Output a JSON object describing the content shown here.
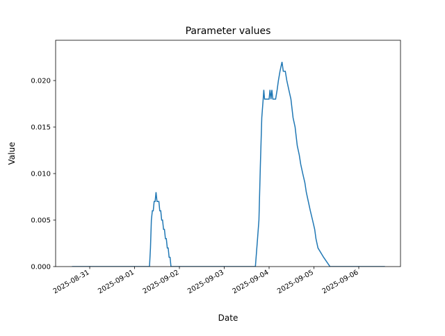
{
  "chart_data": {
    "type": "line",
    "title": "Parameter values",
    "xlabel": "Date",
    "ylabel": "Value",
    "xlim": [
      "2025-08-30 05:45",
      "2025-09-06 22:20"
    ],
    "ylim": [
      0,
      0.02433
    ],
    "x_ticks": [
      "2025-08-31",
      "2025-09-01",
      "2025-09-02",
      "2025-09-03",
      "2025-09-04",
      "2025-09-05",
      "2025-09-06"
    ],
    "y_ticks": [
      "0.000",
      "0.005",
      "0.010",
      "0.015",
      "0.020"
    ],
    "grid": false,
    "color": "#1f77b4",
    "points": [
      [
        "2025-08-30 14:30",
        0
      ],
      [
        "2025-09-01 08:00",
        0
      ],
      [
        "2025-09-01 08:30",
        0.002
      ],
      [
        "2025-09-01 09:00",
        0.005
      ],
      [
        "2025-09-01 09:30",
        0.006
      ],
      [
        "2025-09-01 10:00",
        0.006
      ],
      [
        "2025-09-01 10:30",
        0.007
      ],
      [
        "2025-09-01 11:00",
        0.007
      ],
      [
        "2025-09-01 11:30",
        0.008
      ],
      [
        "2025-09-01 12:00",
        0.007
      ],
      [
        "2025-09-01 12:30",
        0.007
      ],
      [
        "2025-09-01 13:00",
        0.007
      ],
      [
        "2025-09-01 13:30",
        0.006
      ],
      [
        "2025-09-01 14:00",
        0.006
      ],
      [
        "2025-09-01 14:30",
        0.005
      ],
      [
        "2025-09-01 15:00",
        0.005
      ],
      [
        "2025-09-01 15:30",
        0.004
      ],
      [
        "2025-09-01 16:00",
        0.004
      ],
      [
        "2025-09-01 16:30",
        0.003
      ],
      [
        "2025-09-01 17:00",
        0.003
      ],
      [
        "2025-09-01 17:30",
        0.002
      ],
      [
        "2025-09-01 18:00",
        0.002
      ],
      [
        "2025-09-01 18:30",
        0.001
      ],
      [
        "2025-09-01 19:00",
        0.001
      ],
      [
        "2025-09-01 19:30",
        0
      ],
      [
        "2025-09-03 16:40",
        0
      ],
      [
        "2025-09-03 17:50",
        0.003
      ],
      [
        "2025-09-03 18:35",
        0.005
      ],
      [
        "2025-09-03 19:20",
        0.011
      ],
      [
        "2025-09-03 20:05",
        0.016
      ],
      [
        "2025-09-03 20:50",
        0.018
      ],
      [
        "2025-09-03 21:10",
        0.019
      ],
      [
        "2025-09-03 21:35",
        0.018
      ],
      [
        "2025-09-04 00:00",
        0.018
      ],
      [
        "2025-09-04 00:30",
        0.019
      ],
      [
        "2025-09-04 01:00",
        0.018
      ],
      [
        "2025-09-04 01:30",
        0.019
      ],
      [
        "2025-09-04 02:00",
        0.018
      ],
      [
        "2025-09-04 03:30",
        0.018
      ],
      [
        "2025-09-04 04:20",
        0.019
      ],
      [
        "2025-09-04 05:00",
        0.02
      ],
      [
        "2025-09-04 05:50",
        0.021
      ],
      [
        "2025-09-04 06:55",
        0.022
      ],
      [
        "2025-09-04 07:35",
        0.021
      ],
      [
        "2025-09-04 08:40",
        0.021
      ],
      [
        "2025-09-04 09:30",
        0.02
      ],
      [
        "2025-09-04 10:35",
        0.019
      ],
      [
        "2025-09-04 11:40",
        0.018
      ],
      [
        "2025-09-04 12:50",
        0.016
      ],
      [
        "2025-09-04 13:55",
        0.015
      ],
      [
        "2025-09-04 15:05",
        0.013
      ],
      [
        "2025-09-04 16:10",
        0.012
      ],
      [
        "2025-09-04 16:55",
        0.011
      ],
      [
        "2025-09-04 18:00",
        0.01
      ],
      [
        "2025-09-04 19:10",
        0.009
      ],
      [
        "2025-09-04 19:55",
        0.008
      ],
      [
        "2025-09-04 21:00",
        0.007
      ],
      [
        "2025-09-04 22:05",
        0.006
      ],
      [
        "2025-09-04 23:15",
        0.005
      ],
      [
        "2025-09-05 00:25",
        0.004
      ],
      [
        "2025-09-05 01:05",
        0.003
      ],
      [
        "2025-09-05 02:10",
        0.002
      ],
      [
        "2025-09-05 05:10",
        0.001
      ],
      [
        "2025-09-05 08:35",
        0
      ],
      [
        "2025-09-06 14:00",
        0
      ]
    ]
  }
}
